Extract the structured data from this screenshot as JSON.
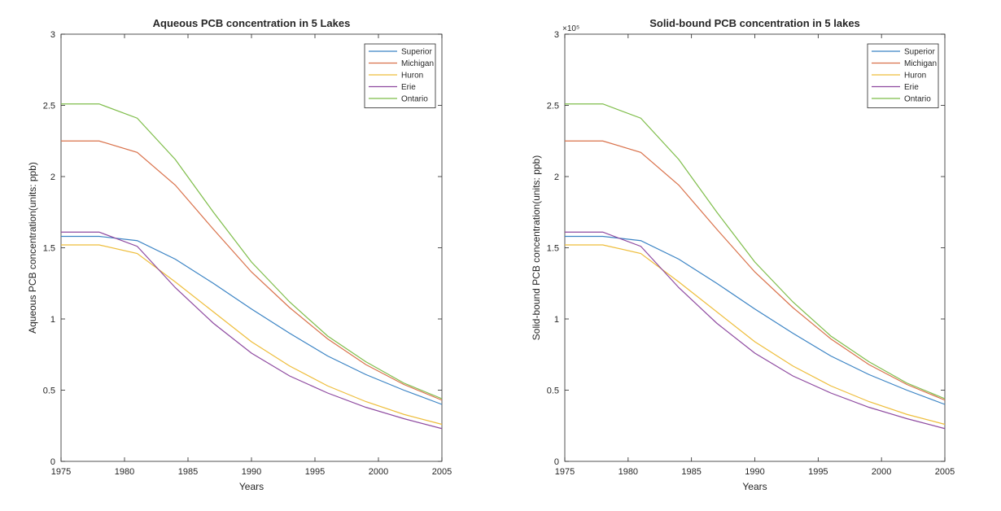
{
  "colors": {
    "Superior": "#3a83c4",
    "Michigan": "#d9714a",
    "Huron": "#eebd3a",
    "Erie": "#8e4aa0",
    "Ontario": "#7ebd49"
  },
  "chart_data": [
    {
      "type": "line",
      "title": "Aqueous PCB concentration in 5 Lakes",
      "xlabel": "Years",
      "ylabel": "Aqueous PCB concentration(units: ppb)",
      "xlim": [
        1975,
        2005
      ],
      "ylim": [
        0,
        3
      ],
      "xticks": [
        "1975",
        "1980",
        "1985",
        "1990",
        "1995",
        "2000",
        "2005"
      ],
      "yticks": [
        "0",
        "0.5",
        "1",
        "1.5",
        "2",
        "2.5",
        "3"
      ],
      "exponent": "",
      "legend_position": "top-right",
      "x": [
        1975,
        1978,
        1981,
        1984,
        1987,
        1990,
        1993,
        1996,
        1999,
        2002,
        2005
      ],
      "series": [
        {
          "name": "Superior",
          "values": [
            1.58,
            1.58,
            1.55,
            1.42,
            1.25,
            1.07,
            0.9,
            0.74,
            0.61,
            0.5,
            0.4
          ]
        },
        {
          "name": "Michigan",
          "values": [
            2.25,
            2.25,
            2.17,
            1.94,
            1.63,
            1.33,
            1.08,
            0.86,
            0.68,
            0.54,
            0.43
          ]
        },
        {
          "name": "Huron",
          "values": [
            1.52,
            1.52,
            1.46,
            1.26,
            1.05,
            0.84,
            0.67,
            0.53,
            0.42,
            0.33,
            0.26
          ]
        },
        {
          "name": "Erie",
          "values": [
            1.61,
            1.61,
            1.51,
            1.22,
            0.97,
            0.76,
            0.6,
            0.48,
            0.38,
            0.3,
            0.23
          ]
        },
        {
          "name": "Ontario",
          "values": [
            2.51,
            2.51,
            2.41,
            2.12,
            1.75,
            1.4,
            1.12,
            0.88,
            0.7,
            0.55,
            0.44
          ]
        }
      ]
    },
    {
      "type": "line",
      "title": "Solid-bound PCB concentration in 5 lakes",
      "xlabel": "Years",
      "ylabel": "Solid-bound PCB concentration(units: ppb)",
      "xlim": [
        1975,
        2005
      ],
      "ylim": [
        0,
        3
      ],
      "xticks": [
        "1975",
        "1980",
        "1985",
        "1990",
        "1995",
        "2000",
        "2005"
      ],
      "yticks": [
        "0",
        "0.5",
        "1",
        "1.5",
        "2",
        "2.5",
        "3"
      ],
      "exponent": "×10⁵",
      "legend_position": "top-right",
      "x": [
        1975,
        1978,
        1981,
        1984,
        1987,
        1990,
        1993,
        1996,
        1999,
        2002,
        2005
      ],
      "series": [
        {
          "name": "Superior",
          "values": [
            1.58,
            1.58,
            1.55,
            1.42,
            1.25,
            1.07,
            0.9,
            0.74,
            0.61,
            0.5,
            0.4
          ]
        },
        {
          "name": "Michigan",
          "values": [
            2.25,
            2.25,
            2.17,
            1.94,
            1.63,
            1.33,
            1.08,
            0.86,
            0.68,
            0.54,
            0.43
          ]
        },
        {
          "name": "Huron",
          "values": [
            1.52,
            1.52,
            1.46,
            1.26,
            1.05,
            0.84,
            0.67,
            0.53,
            0.42,
            0.33,
            0.26
          ]
        },
        {
          "name": "Erie",
          "values": [
            1.61,
            1.61,
            1.51,
            1.22,
            0.97,
            0.76,
            0.6,
            0.48,
            0.38,
            0.3,
            0.23
          ]
        },
        {
          "name": "Ontario",
          "values": [
            2.51,
            2.51,
            2.41,
            2.12,
            1.75,
            1.4,
            1.12,
            0.88,
            0.7,
            0.55,
            0.44
          ]
        }
      ]
    }
  ]
}
